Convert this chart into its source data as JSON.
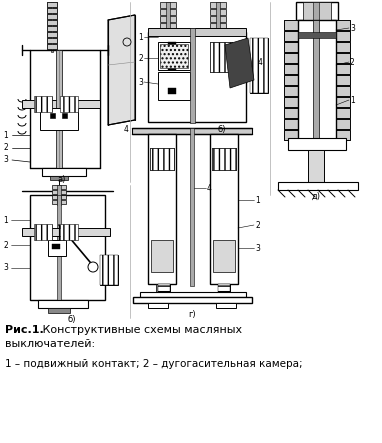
{
  "title_bold": "Рис.1.",
  "title_rest": " Конструктивные схемы масляных",
  "title_line2": "выключателей:",
  "caption_line1": "1 – подвижный контакт; 2 – дугогасительная камера;",
  "bg_color": "#ffffff",
  "line_color": "#000000",
  "gray_light": "#cccccc",
  "gray_mid": "#999999",
  "gray_dark": "#555555",
  "fig_width": 3.82,
  "fig_height": 4.43,
  "dpi": 100
}
